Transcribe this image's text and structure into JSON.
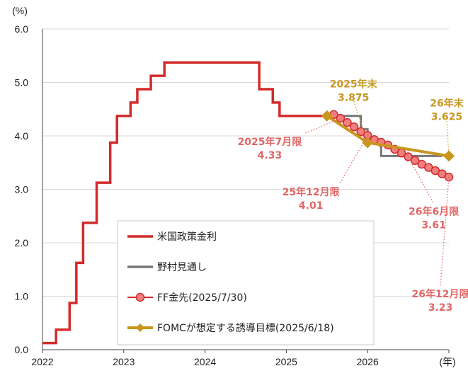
{
  "chart_data": {
    "type": "line",
    "y_unit": "(%)",
    "x_unit": "(年)",
    "ylim": [
      0,
      6
    ],
    "yticks": [
      "0.0",
      "1.0",
      "2.0",
      "3.0",
      "4.0",
      "5.0",
      "6.0"
    ],
    "xlim": [
      "2022-01",
      "2027-01"
    ],
    "xticks": [
      "2022",
      "2023",
      "2024",
      "2025",
      "2026"
    ],
    "grid": "horizontal",
    "legend_position": "bottom-center",
    "series": [
      {
        "name": "米国政策金利",
        "color": "#d22b2b",
        "style": "step",
        "points": [
          [
            "2022-01",
            0.125
          ],
          [
            "2022-03",
            0.375
          ],
          [
            "2022-05",
            0.875
          ],
          [
            "2022-06",
            1.625
          ],
          [
            "2022-07",
            2.375
          ],
          [
            "2022-09",
            3.125
          ],
          [
            "2022-11",
            3.875
          ],
          [
            "2022-12",
            4.375
          ],
          [
            "2023-02",
            4.625
          ],
          [
            "2023-03",
            4.875
          ],
          [
            "2023-05",
            5.125
          ],
          [
            "2023-07",
            5.375
          ],
          [
            "2024-09",
            4.875
          ],
          [
            "2024-11",
            4.625
          ],
          [
            "2024-12",
            4.375
          ],
          [
            "2025-07",
            4.375
          ]
        ]
      },
      {
        "name": "野村見通し",
        "color": "#777777",
        "style": "step",
        "points": [
          [
            "2025-07",
            4.375
          ],
          [
            "2025-12",
            4.125
          ],
          [
            "2026-01",
            3.875
          ],
          [
            "2026-03",
            3.625
          ],
          [
            "2026-12",
            3.625
          ]
        ]
      },
      {
        "name": "FF金先(2025/7/30)",
        "color": "#d22b2b",
        "marker_fill": "#f08080",
        "style": "line-markers",
        "points": [
          [
            "2025-08",
            4.4
          ],
          [
            "2025-09",
            4.33
          ],
          [
            "2025-10",
            4.25
          ],
          [
            "2025-11",
            4.17
          ],
          [
            "2025-12",
            4.08
          ],
          [
            "2026-01",
            4.01
          ],
          [
            "2026-02",
            3.93
          ],
          [
            "2026-03",
            3.88
          ],
          [
            "2026-04",
            3.83
          ],
          [
            "2026-05",
            3.75
          ],
          [
            "2026-06",
            3.68
          ],
          [
            "2026-07",
            3.61
          ],
          [
            "2026-08",
            3.54
          ],
          [
            "2026-09",
            3.47
          ],
          [
            "2026-10",
            3.41
          ],
          [
            "2026-11",
            3.35
          ],
          [
            "2026-12",
            3.29
          ],
          [
            "2027-01",
            3.23
          ]
        ]
      },
      {
        "name": "FOMCが想定する誘導目標(2025/6/18)",
        "color": "#c9961e",
        "style": "line-diamond",
        "points": [
          [
            "2025-07",
            4.375
          ],
          [
            "2026-01",
            3.875
          ],
          [
            "2027-01",
            3.625
          ]
        ]
      }
    ],
    "annotations": [
      {
        "lines": [
          "2025年末",
          "3.875"
        ],
        "color": "#c9961e",
        "point": [
          "2026-01",
          3.875
        ],
        "placement": "above"
      },
      {
        "lines": [
          "26年末",
          "3.625"
        ],
        "color": "#c9961e",
        "point": [
          "2027-01",
          3.625
        ],
        "placement": "above"
      },
      {
        "lines": [
          "2025年7月限",
          "4.33"
        ],
        "color": "#e06666",
        "point": [
          "2025-09",
          4.33
        ],
        "placement": "left"
      },
      {
        "lines": [
          "25年12月限",
          "4.01"
        ],
        "color": "#e06666",
        "point": [
          "2026-01",
          4.01
        ],
        "placement": "below-left"
      },
      {
        "lines": [
          "26年6月限",
          "3.61"
        ],
        "color": "#e06666",
        "point": [
          "2026-07",
          3.61
        ],
        "placement": "below"
      },
      {
        "lines": [
          "26年12月限",
          "3.23"
        ],
        "color": "#e06666",
        "point": [
          "2027-01",
          3.23
        ],
        "placement": "below"
      }
    ]
  }
}
